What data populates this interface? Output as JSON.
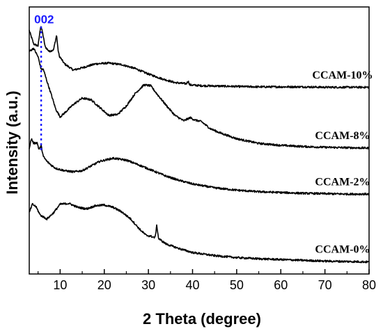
{
  "chart_data": {
    "type": "line",
    "xlabel": "2 Theta (degree)",
    "ylabel": "Intensity (a.u.)",
    "xlim": [
      3,
      80
    ],
    "xticks": [
      10,
      20,
      30,
      40,
      50,
      60,
      70,
      80
    ],
    "y_tick_labels_shown": false,
    "grid": false,
    "annotation": {
      "label": "002",
      "x": 5.7,
      "color": "#1a1aff",
      "style": "dotted-vertical-line"
    },
    "series": [
      {
        "name": "CCAM-10%",
        "x": [
          3,
          4,
          5,
          5.6,
          6,
          6.6,
          7.5,
          8.5,
          9.2,
          9.5,
          9.8,
          11,
          13,
          15,
          18,
          21,
          24,
          27,
          30,
          33,
          36,
          38.6,
          39,
          39.4,
          42,
          46,
          50,
          55,
          60,
          65,
          70,
          75,
          80
        ],
        "y": [
          4.4,
          4.05,
          4.0,
          4.52,
          4.35,
          3.98,
          3.86,
          3.9,
          4.28,
          3.92,
          3.74,
          3.54,
          3.38,
          3.44,
          3.54,
          3.56,
          3.52,
          3.42,
          3.28,
          3.16,
          3.06,
          3.03,
          3.1,
          3.0,
          2.98,
          2.97,
          2.96,
          2.95,
          2.95,
          2.95,
          2.94,
          2.94,
          2.94
        ]
      },
      {
        "name": "CCAM-8%",
        "x": [
          3,
          4,
          5,
          5.7,
          6.2,
          7,
          8,
          9,
          10,
          11,
          13,
          15,
          17,
          19,
          21,
          23,
          25,
          27,
          29,
          30.5,
          32,
          34,
          36,
          38,
          39.5,
          40.5,
          42,
          44,
          46,
          50,
          55,
          60,
          65,
          70,
          75,
          80
        ],
        "y": [
          3.86,
          3.94,
          3.72,
          3.4,
          3.4,
          3.1,
          2.75,
          2.38,
          2.18,
          2.28,
          2.5,
          2.66,
          2.62,
          2.42,
          2.22,
          2.24,
          2.46,
          2.78,
          3.0,
          2.98,
          2.76,
          2.48,
          2.22,
          2.08,
          2.16,
          2.1,
          2.06,
          1.88,
          1.78,
          1.62,
          1.5,
          1.45,
          1.42,
          1.4,
          1.39,
          1.38
        ]
      },
      {
        "name": "CCAM-2%",
        "x": [
          3,
          3.5,
          4,
          4.8,
          5.2,
          5.7,
          6.2,
          7,
          8,
          9,
          11,
          13,
          15,
          17,
          19,
          22,
          25,
          28,
          31,
          34,
          37,
          40,
          45,
          50,
          55,
          60,
          65,
          70,
          75,
          80
        ],
        "y": [
          1.38,
          1.62,
          1.5,
          1.52,
          1.34,
          1.44,
          1.16,
          1.04,
          0.94,
          0.86,
          0.8,
          0.77,
          0.8,
          0.92,
          1.04,
          1.12,
          1.07,
          0.94,
          0.8,
          0.66,
          0.55,
          0.46,
          0.36,
          0.3,
          0.26,
          0.24,
          0.22,
          0.21,
          0.2,
          0.2
        ]
      },
      {
        "name": "CCAM-0%",
        "x": [
          3,
          3.7,
          4.5,
          5.5,
          7,
          8.5,
          10,
          12,
          14,
          16,
          18,
          20,
          22,
          24,
          26,
          28,
          29.5,
          30.5,
          31.5,
          31.9,
          32.3,
          34,
          37,
          40,
          45,
          50,
          55,
          60,
          65,
          70,
          75,
          80
        ],
        "y": [
          -0.28,
          -0.06,
          -0.12,
          -0.34,
          -0.44,
          -0.28,
          -0.06,
          -0.04,
          -0.14,
          -0.18,
          -0.1,
          -0.08,
          -0.14,
          -0.26,
          -0.44,
          -0.7,
          -0.86,
          -0.88,
          -0.92,
          -0.6,
          -0.94,
          -1.08,
          -1.2,
          -1.3,
          -1.38,
          -1.43,
          -1.46,
          -1.48,
          -1.5,
          -1.52,
          -1.53,
          -1.54
        ]
      }
    ],
    "series_labels_at_x": [
      74,
      74,
      74,
      74
    ]
  }
}
